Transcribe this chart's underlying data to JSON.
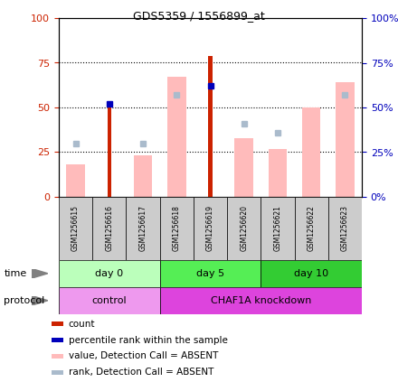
{
  "title": "GDS5359 / 1556899_at",
  "samples": [
    "GSM1256615",
    "GSM1256616",
    "GSM1256617",
    "GSM1256618",
    "GSM1256619",
    "GSM1256620",
    "GSM1256621",
    "GSM1256622",
    "GSM1256623"
  ],
  "count_values": [
    0,
    51,
    0,
    0,
    79,
    0,
    0,
    0,
    0
  ],
  "rank_values": [
    0,
    52,
    0,
    0,
    62,
    0,
    0,
    0,
    0
  ],
  "value_absent": [
    18,
    0,
    23,
    67,
    0,
    33,
    27,
    50,
    64
  ],
  "rank_absent": [
    30,
    0,
    30,
    57,
    0,
    41,
    36,
    0,
    57
  ],
  "time_groups": [
    {
      "label": "day 0",
      "start": 0,
      "end": 3,
      "color": "#bbffbb"
    },
    {
      "label": "day 5",
      "start": 3,
      "end": 6,
      "color": "#55ee55"
    },
    {
      "label": "day 10",
      "start": 6,
      "end": 9,
      "color": "#33cc33"
    }
  ],
  "protocol_groups": [
    {
      "label": "control",
      "start": 0,
      "end": 3,
      "color": "#ee99ee"
    },
    {
      "label": "CHAF1A knockdown",
      "start": 3,
      "end": 9,
      "color": "#dd44dd"
    }
  ],
  "color_count": "#cc2200",
  "color_rank": "#0000bb",
  "color_value_absent": "#ffbbbb",
  "color_rank_absent": "#aabbcc",
  "ylim": [
    0,
    100
  ],
  "yticks": [
    0,
    25,
    50,
    75,
    100
  ],
  "left_tick_color": "#cc2200",
  "right_tick_color": "#0000bb",
  "sample_bg": "#cccccc",
  "legend_items": [
    {
      "color": "#cc2200",
      "label": "count"
    },
    {
      "color": "#0000bb",
      "label": "percentile rank within the sample"
    },
    {
      "color": "#ffbbbb",
      "label": "value, Detection Call = ABSENT"
    },
    {
      "color": "#aabbcc",
      "label": "rank, Detection Call = ABSENT"
    }
  ]
}
